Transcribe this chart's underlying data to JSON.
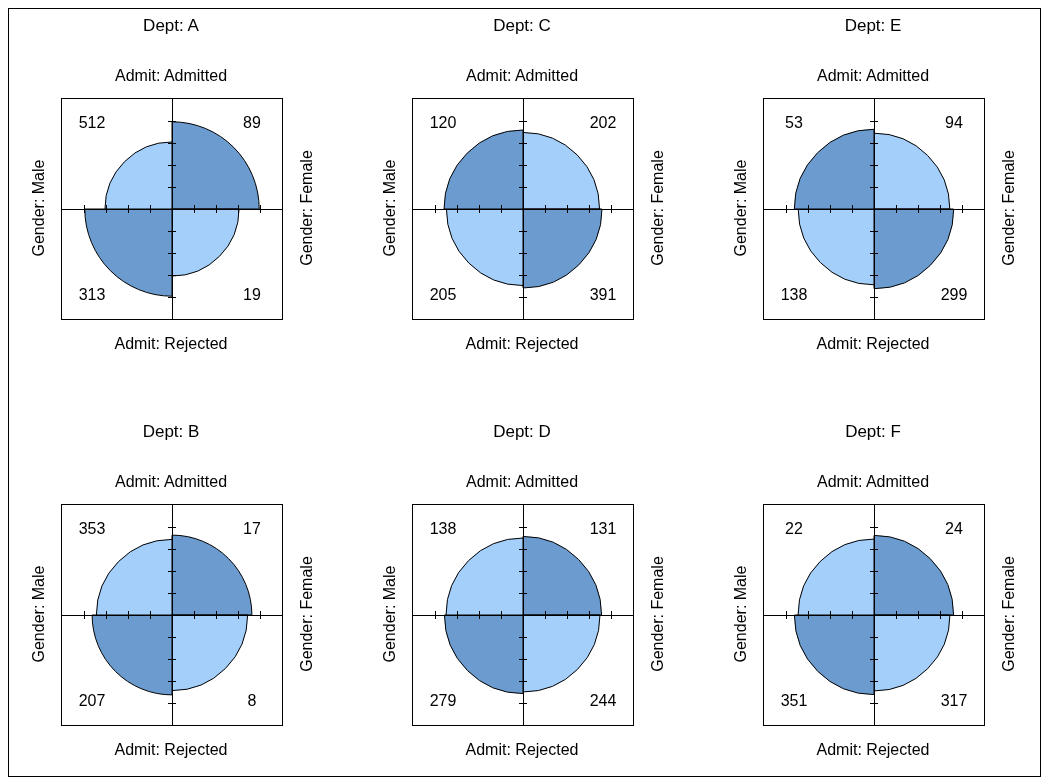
{
  "chart_data": [
    {
      "type": "other",
      "title": "Dept: A",
      "categories": [
        "Admit: Admitted",
        "Admit: Rejected"
      ],
      "data_labels": true,
      "series": [
        {
          "name": "Gender: Male",
          "values": [
            512,
            313
          ],
          "colors": [
            "#a4cffa",
            "#6c9ccf"
          ]
        },
        {
          "name": "Gender: Female",
          "values": [
            89,
            19
          ],
          "colors": [
            "#6c9ccf",
            "#a4cffa"
          ]
        }
      ]
    },
    {
      "type": "other",
      "title": "Dept: C",
      "categories": [
        "Admit: Admitted",
        "Admit: Rejected"
      ],
      "data_labels": true,
      "series": [
        {
          "name": "Gender: Male",
          "values": [
            120,
            205
          ],
          "colors": [
            "#6c9ccf",
            "#a4cffa"
          ]
        },
        {
          "name": "Gender: Female",
          "values": [
            202,
            391
          ],
          "colors": [
            "#a4cffa",
            "#6c9ccf"
          ]
        }
      ]
    },
    {
      "type": "other",
      "title": "Dept: E",
      "categories": [
        "Admit: Admitted",
        "Admit: Rejected"
      ],
      "data_labels": true,
      "series": [
        {
          "name": "Gender: Male",
          "values": [
            53,
            138
          ],
          "colors": [
            "#6c9ccf",
            "#a4cffa"
          ]
        },
        {
          "name": "Gender: Female",
          "values": [
            94,
            299
          ],
          "colors": [
            "#a4cffa",
            "#6c9ccf"
          ]
        }
      ]
    },
    {
      "type": "other",
      "title": "Dept: B",
      "categories": [
        "Admit: Admitted",
        "Admit: Rejected"
      ],
      "data_labels": true,
      "series": [
        {
          "name": "Gender: Male",
          "values": [
            353,
            207
          ],
          "colors": [
            "#a4cffa",
            "#6c9ccf"
          ]
        },
        {
          "name": "Gender: Female",
          "values": [
            17,
            8
          ],
          "colors": [
            "#6c9ccf",
            "#a4cffa"
          ]
        }
      ]
    },
    {
      "type": "other",
      "title": "Dept: D",
      "categories": [
        "Admit: Admitted",
        "Admit: Rejected"
      ],
      "data_labels": true,
      "series": [
        {
          "name": "Gender: Male",
          "values": [
            138,
            279
          ],
          "colors": [
            "#a4cffa",
            "#6c9ccf"
          ]
        },
        {
          "name": "Gender: Female",
          "values": [
            131,
            244
          ],
          "colors": [
            "#6c9ccf",
            "#a4cffa"
          ]
        }
      ]
    },
    {
      "type": "other",
      "title": "Dept: F",
      "categories": [
        "Admit: Admitted",
        "Admit: Rejected"
      ],
      "data_labels": true,
      "series": [
        {
          "name": "Gender: Male",
          "values": [
            22,
            351
          ],
          "colors": [
            "#a4cffa",
            "#6c9ccf"
          ]
        },
        {
          "name": "Gender: Female",
          "values": [
            24,
            317
          ],
          "colors": [
            "#6c9ccf",
            "#a4cffa"
          ]
        }
      ]
    }
  ]
}
